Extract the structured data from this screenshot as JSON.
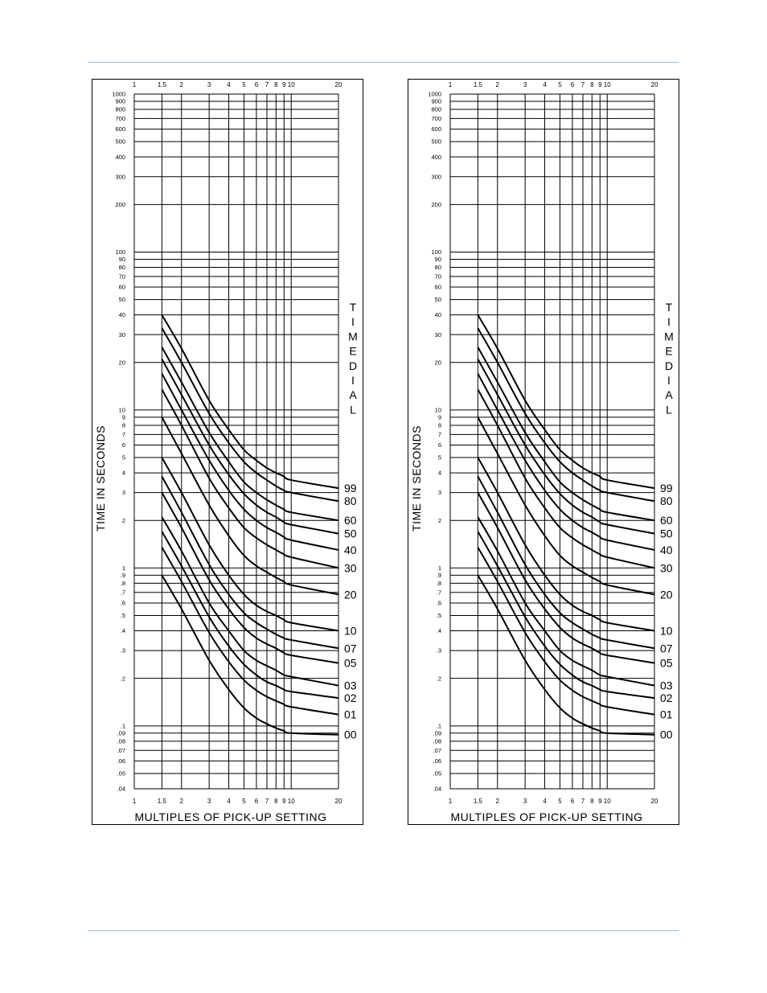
{
  "page": {
    "top_rule": "",
    "bottom_rule": ""
  },
  "chart_data": [
    {
      "type": "line",
      "xscale": "log",
      "yscale": "log",
      "xlim": [
        1,
        20
      ],
      "ylim": [
        0.04,
        1000
      ],
      "xlabel": "MULTIPLES OF PICK-UP SETTING",
      "ylabel": "TIME IN SECONDS",
      "legend_title": "TIME DIAL",
      "grid": true,
      "x_ticks": [
        {
          "value": 1,
          "label": "1"
        },
        {
          "value": 1.5,
          "label": "1.5"
        },
        {
          "value": 2,
          "label": "2"
        },
        {
          "value": 3,
          "label": "3"
        },
        {
          "value": 4,
          "label": "4"
        },
        {
          "value": 5,
          "label": "5"
        },
        {
          "value": 6,
          "label": "6"
        },
        {
          "value": 7,
          "label": "7"
        },
        {
          "value": 8,
          "label": "8"
        },
        {
          "value": 9,
          "label": "9"
        },
        {
          "value": 10,
          "label": "10"
        },
        {
          "value": 20,
          "label": "20"
        }
      ],
      "y_ticks": [
        {
          "value": 1000,
          "label": "1000"
        },
        {
          "value": 900,
          "label": "900"
        },
        {
          "value": 800,
          "label": "800"
        },
        {
          "value": 700,
          "label": "700"
        },
        {
          "value": 600,
          "label": "600"
        },
        {
          "value": 500,
          "label": "500"
        },
        {
          "value": 400,
          "label": "400"
        },
        {
          "value": 300,
          "label": "300"
        },
        {
          "value": 200,
          "label": "200"
        },
        {
          "value": 100,
          "label": "100"
        },
        {
          "value": 90,
          "label": "90"
        },
        {
          "value": 80,
          "label": "80"
        },
        {
          "value": 70,
          "label": "70"
        },
        {
          "value": 60,
          "label": "60"
        },
        {
          "value": 50,
          "label": "50"
        },
        {
          "value": 40,
          "label": "40"
        },
        {
          "value": 30,
          "label": "30"
        },
        {
          "value": 20,
          "label": "20"
        },
        {
          "value": 10,
          "label": "10"
        },
        {
          "value": 9,
          "label": "9"
        },
        {
          "value": 8,
          "label": "8"
        },
        {
          "value": 7,
          "label": "7"
        },
        {
          "value": 6,
          "label": "6"
        },
        {
          "value": 5,
          "label": "5"
        },
        {
          "value": 4,
          "label": "4"
        },
        {
          "value": 3,
          "label": "3"
        },
        {
          "value": 2,
          "label": "2"
        },
        {
          "value": 1,
          "label": "1"
        },
        {
          "value": 0.9,
          "label": ".9"
        },
        {
          "value": 0.8,
          "label": ".8"
        },
        {
          "value": 0.7,
          "label": ".7"
        },
        {
          "value": 0.6,
          "label": ".6"
        },
        {
          "value": 0.5,
          "label": ".5"
        },
        {
          "value": 0.4,
          "label": ".4"
        },
        {
          "value": 0.3,
          "label": ".3"
        },
        {
          "value": 0.2,
          "label": ".2"
        },
        {
          "value": 0.1,
          "label": ".1"
        },
        {
          "value": 0.09,
          "label": ".09"
        },
        {
          "value": 0.08,
          "label": ".08"
        },
        {
          "value": 0.07,
          "label": ".07"
        },
        {
          "value": 0.06,
          "label": ".06"
        },
        {
          "value": 0.05,
          "label": ".05"
        },
        {
          "value": 0.04,
          "label": ".04"
        }
      ],
      "x": [
        1.5,
        2,
        3,
        4,
        5,
        6,
        7,
        8,
        9,
        10,
        20
      ],
      "series": [
        {
          "name": "99",
          "values": [
            40,
            24.5,
            11.5,
            7.5,
            5.6,
            4.8,
            4.3,
            4.0,
            3.8,
            3.6,
            3.2
          ]
        },
        {
          "name": "80",
          "values": [
            33,
            20.0,
            9.5,
            6.2,
            4.7,
            4.0,
            3.6,
            3.3,
            3.1,
            3.0,
            2.65
          ]
        },
        {
          "name": "60",
          "values": [
            25,
            15.0,
            7.2,
            4.7,
            3.5,
            3.0,
            2.7,
            2.5,
            2.35,
            2.25,
            2.0
          ]
        },
        {
          "name": "50",
          "values": [
            21,
            12.5,
            6.0,
            3.9,
            2.95,
            2.5,
            2.25,
            2.1,
            1.95,
            1.88,
            1.65
          ]
        },
        {
          "name": "40",
          "values": [
            17,
            10.0,
            4.8,
            3.1,
            2.35,
            2.0,
            1.8,
            1.68,
            1.57,
            1.5,
            1.3
          ]
        },
        {
          "name": "30",
          "values": [
            13.5,
            8.0,
            3.7,
            2.4,
            1.8,
            1.55,
            1.4,
            1.3,
            1.22,
            1.17,
            1.0
          ]
        },
        {
          "name": "20",
          "values": [
            9.0,
            5.3,
            2.5,
            1.6,
            1.2,
            1.03,
            0.94,
            0.87,
            0.82,
            0.78,
            0.68
          ]
        },
        {
          "name": "10",
          "values": [
            5.0,
            3.0,
            1.4,
            0.9,
            0.68,
            0.58,
            0.53,
            0.5,
            0.47,
            0.45,
            0.4
          ]
        },
        {
          "name": "07",
          "values": [
            3.8,
            2.25,
            1.05,
            0.68,
            0.52,
            0.45,
            0.41,
            0.38,
            0.36,
            0.35,
            0.31
          ]
        },
        {
          "name": "05",
          "values": [
            3.0,
            1.8,
            0.84,
            0.55,
            0.42,
            0.36,
            0.33,
            0.31,
            0.29,
            0.28,
            0.25
          ]
        },
        {
          "name": "03",
          "values": [
            2.1,
            1.28,
            0.6,
            0.4,
            0.3,
            0.26,
            0.24,
            0.225,
            0.21,
            0.205,
            0.18
          ]
        },
        {
          "name": "02",
          "values": [
            1.7,
            1.03,
            0.49,
            0.32,
            0.245,
            0.21,
            0.19,
            0.18,
            0.17,
            0.165,
            0.15
          ]
        },
        {
          "name": "01",
          "values": [
            1.35,
            0.82,
            0.39,
            0.255,
            0.195,
            0.168,
            0.153,
            0.144,
            0.137,
            0.132,
            0.118
          ]
        },
        {
          "name": "00",
          "values": [
            0.9,
            0.55,
            0.26,
            0.17,
            0.13,
            0.112,
            0.103,
            0.097,
            0.093,
            0.09,
            0.088
          ]
        }
      ]
    },
    {
      "type": "line",
      "xscale": "log",
      "yscale": "log",
      "xlim": [
        1,
        20
      ],
      "ylim": [
        0.04,
        1000
      ],
      "xlabel": "MULTIPLES OF PICK-UP SETTING",
      "ylabel": "TIME IN SECONDS",
      "legend_title": "TIME DIAL",
      "grid": true,
      "x_ticks": [
        {
          "value": 1,
          "label": "1"
        },
        {
          "value": 1.5,
          "label": "1.5"
        },
        {
          "value": 2,
          "label": "2"
        },
        {
          "value": 3,
          "label": "3"
        },
        {
          "value": 4,
          "label": "4"
        },
        {
          "value": 5,
          "label": "5"
        },
        {
          "value": 6,
          "label": "6"
        },
        {
          "value": 7,
          "label": "7"
        },
        {
          "value": 8,
          "label": "8"
        },
        {
          "value": 9,
          "label": "9"
        },
        {
          "value": 10,
          "label": "10"
        },
        {
          "value": 20,
          "label": "20"
        }
      ],
      "y_ticks": [
        {
          "value": 1000,
          "label": "1000"
        },
        {
          "value": 900,
          "label": "900"
        },
        {
          "value": 800,
          "label": "800"
        },
        {
          "value": 700,
          "label": "700"
        },
        {
          "value": 600,
          "label": "600"
        },
        {
          "value": 500,
          "label": "500"
        },
        {
          "value": 400,
          "label": "400"
        },
        {
          "value": 300,
          "label": "300"
        },
        {
          "value": 200,
          "label": "200"
        },
        {
          "value": 100,
          "label": "100"
        },
        {
          "value": 90,
          "label": "90"
        },
        {
          "value": 80,
          "label": "80"
        },
        {
          "value": 70,
          "label": "70"
        },
        {
          "value": 60,
          "label": "60"
        },
        {
          "value": 50,
          "label": "50"
        },
        {
          "value": 40,
          "label": "40"
        },
        {
          "value": 30,
          "label": "30"
        },
        {
          "value": 20,
          "label": "20"
        },
        {
          "value": 10,
          "label": "10"
        },
        {
          "value": 9,
          "label": "9"
        },
        {
          "value": 8,
          "label": "8"
        },
        {
          "value": 7,
          "label": "7"
        },
        {
          "value": 6,
          "label": "6"
        },
        {
          "value": 5,
          "label": "5"
        },
        {
          "value": 4,
          "label": "4"
        },
        {
          "value": 3,
          "label": "3"
        },
        {
          "value": 2,
          "label": "2"
        },
        {
          "value": 1,
          "label": "1"
        },
        {
          "value": 0.9,
          "label": ".9"
        },
        {
          "value": 0.8,
          "label": ".8"
        },
        {
          "value": 0.7,
          "label": ".7"
        },
        {
          "value": 0.6,
          "label": ".6"
        },
        {
          "value": 0.5,
          "label": ".5"
        },
        {
          "value": 0.4,
          "label": ".4"
        },
        {
          "value": 0.3,
          "label": ".3"
        },
        {
          "value": 0.2,
          "label": ".2"
        },
        {
          "value": 0.1,
          "label": ".1"
        },
        {
          "value": 0.09,
          "label": ".09"
        },
        {
          "value": 0.08,
          "label": ".08"
        },
        {
          "value": 0.07,
          "label": ".07"
        },
        {
          "value": 0.06,
          "label": ".06"
        },
        {
          "value": 0.05,
          "label": ".05"
        },
        {
          "value": 0.04,
          "label": ".04"
        }
      ],
      "x": [
        1.5,
        2,
        3,
        4,
        5,
        6,
        7,
        8,
        9,
        10,
        20
      ],
      "series": [
        {
          "name": "99",
          "values": [
            40,
            24.5,
            11.5,
            7.5,
            5.6,
            4.8,
            4.3,
            4.0,
            3.8,
            3.6,
            3.2
          ]
        },
        {
          "name": "80",
          "values": [
            33,
            20.0,
            9.5,
            6.2,
            4.7,
            4.0,
            3.6,
            3.3,
            3.1,
            3.0,
            2.65
          ]
        },
        {
          "name": "60",
          "values": [
            25,
            15.0,
            7.2,
            4.7,
            3.5,
            3.0,
            2.7,
            2.5,
            2.35,
            2.25,
            2.0
          ]
        },
        {
          "name": "50",
          "values": [
            21,
            12.5,
            6.0,
            3.9,
            2.95,
            2.5,
            2.25,
            2.1,
            1.95,
            1.88,
            1.65
          ]
        },
        {
          "name": "40",
          "values": [
            17,
            10.0,
            4.8,
            3.1,
            2.35,
            2.0,
            1.8,
            1.68,
            1.57,
            1.5,
            1.3
          ]
        },
        {
          "name": "30",
          "values": [
            13.5,
            8.0,
            3.7,
            2.4,
            1.8,
            1.55,
            1.4,
            1.3,
            1.22,
            1.17,
            1.0
          ]
        },
        {
          "name": "20",
          "values": [
            9.0,
            5.3,
            2.5,
            1.6,
            1.2,
            1.03,
            0.94,
            0.87,
            0.82,
            0.78,
            0.68
          ]
        },
        {
          "name": "10",
          "values": [
            5.0,
            3.0,
            1.4,
            0.9,
            0.68,
            0.58,
            0.53,
            0.5,
            0.47,
            0.45,
            0.4
          ]
        },
        {
          "name": "07",
          "values": [
            3.8,
            2.25,
            1.05,
            0.68,
            0.52,
            0.45,
            0.41,
            0.38,
            0.36,
            0.35,
            0.31
          ]
        },
        {
          "name": "05",
          "values": [
            3.0,
            1.8,
            0.84,
            0.55,
            0.42,
            0.36,
            0.33,
            0.31,
            0.29,
            0.28,
            0.25
          ]
        },
        {
          "name": "03",
          "values": [
            2.1,
            1.28,
            0.6,
            0.4,
            0.3,
            0.26,
            0.24,
            0.225,
            0.21,
            0.205,
            0.18
          ]
        },
        {
          "name": "02",
          "values": [
            1.7,
            1.03,
            0.49,
            0.32,
            0.245,
            0.21,
            0.19,
            0.18,
            0.17,
            0.165,
            0.15
          ]
        },
        {
          "name": "01",
          "values": [
            1.35,
            0.82,
            0.39,
            0.255,
            0.195,
            0.168,
            0.153,
            0.144,
            0.137,
            0.132,
            0.118
          ]
        },
        {
          "name": "00",
          "values": [
            0.9,
            0.55,
            0.26,
            0.17,
            0.13,
            0.112,
            0.103,
            0.097,
            0.093,
            0.09,
            0.088
          ]
        }
      ]
    }
  ]
}
